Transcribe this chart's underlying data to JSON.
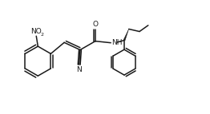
{
  "bg_color": "#ffffff",
  "line_color": "#1a1a1a",
  "line_width": 1.1,
  "font_size_label": 6.5,
  "font_size_sub": 4.5,
  "fig_width": 2.62,
  "fig_height": 1.43,
  "dpi": 100,
  "xlim": [
    0,
    10
  ],
  "ylim": [
    0,
    5.5
  ]
}
